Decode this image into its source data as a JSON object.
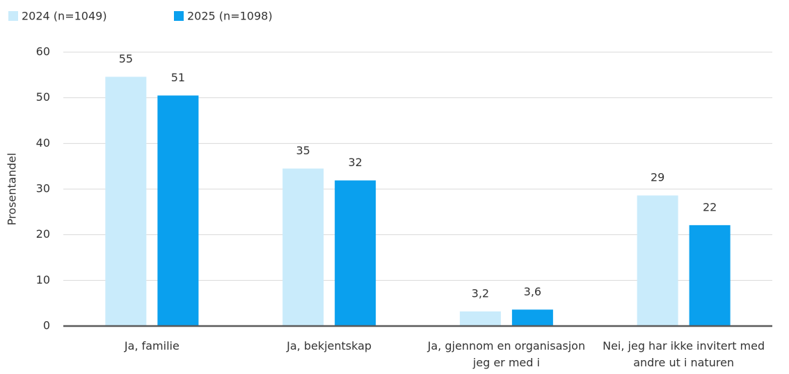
{
  "chart_data": {
    "type": "bar",
    "y_label": "Prosentandel",
    "categories": [
      "Ja, familie",
      "Ja, bekjentskap",
      "Ja, gjennom en organisasjon jeg er med i",
      "Nei, jeg har ikke invitert med andre ut i naturen"
    ],
    "series": [
      {
        "name": "2024 (n=1049)",
        "color": "#c9ebfb",
        "values": [
          54.6,
          34.5,
          3.2,
          28.6
        ],
        "value_labels": [
          "55",
          "35",
          "3,2",
          "29"
        ]
      },
      {
        "name": "2025 (n=1098)",
        "color": "#0aa0ee",
        "values": [
          50.5,
          31.9,
          3.6,
          22.1
        ],
        "value_labels": [
          "51",
          "32",
          "3,6",
          "22"
        ]
      }
    ],
    "ylim": [
      0,
      60
    ],
    "yticks": [
      0,
      10,
      20,
      30,
      40,
      50,
      60
    ],
    "grid": true,
    "legend": "top-left"
  }
}
